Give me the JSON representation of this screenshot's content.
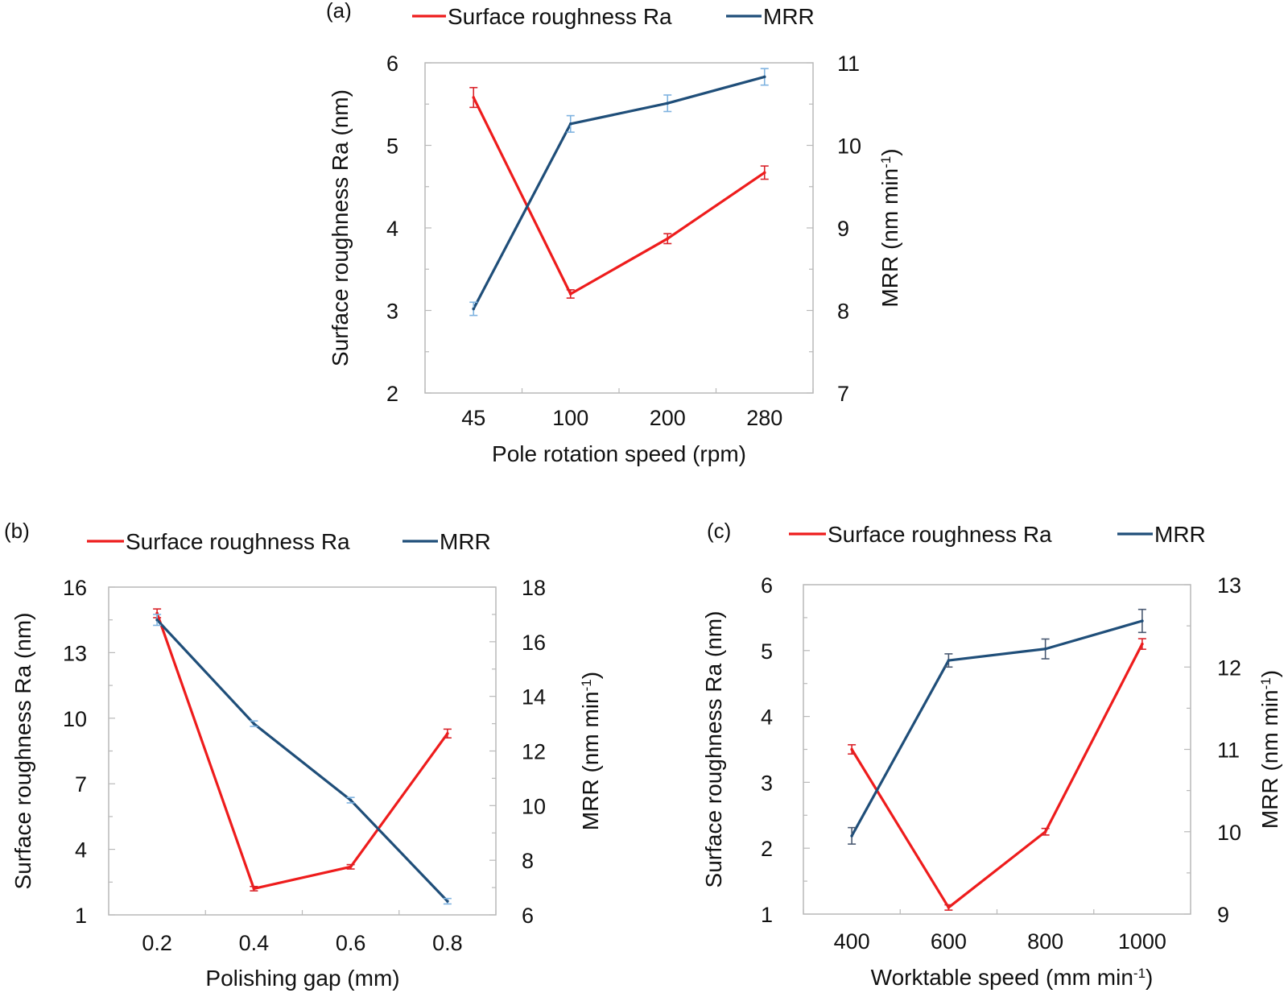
{
  "colors": {
    "roughness": "#ee1c1c",
    "mrr": "#1f4e79",
    "err_roughness": "#d9232a",
    "err_mrr_a": "#7fb3e0",
    "err_mrr": "#4a5a72"
  },
  "chart_data": [
    {
      "type": "line",
      "panel_label": "(a)",
      "xlabel": "Pole rotation speed  (rpm)",
      "ylabel_left": "Surface roughness Ra   (nm)",
      "ylabel_right_main": "MRR  (nm min",
      "ylabel_right_sup": "-1",
      "ylabel_right_close": ")",
      "categories": [
        "45",
        "100",
        "200",
        "280"
      ],
      "y_left": {
        "min": 2,
        "max": 6,
        "ticks": [
          "2",
          "3",
          "4",
          "5",
          "6"
        ]
      },
      "y_right": {
        "min": 7,
        "max": 11,
        "ticks": [
          "7",
          "8",
          "9",
          "10",
          "11"
        ]
      },
      "series": [
        {
          "name": "Surface roughness Ra",
          "axis": "left",
          "values": [
            5.58,
            3.2,
            3.87,
            4.67
          ],
          "errors": [
            0.12,
            0.05,
            0.06,
            0.08
          ]
        },
        {
          "name": "MRR",
          "axis": "right",
          "values": [
            8.02,
            10.26,
            10.51,
            10.83
          ],
          "errors": [
            0.08,
            0.1,
            0.1,
            0.1
          ]
        }
      ]
    },
    {
      "type": "line",
      "panel_label": "(b)",
      "xlabel": "Polishing gap (mm)",
      "ylabel_left": "Surface roughness Ra   (nm)",
      "ylabel_right_main": "MRR  (nm min",
      "ylabel_right_sup": "-1",
      "ylabel_right_close": ")",
      "categories": [
        "0.2",
        "0.4",
        "0.6",
        "0.8"
      ],
      "y_left": {
        "min": 1,
        "max": 16,
        "ticks": [
          "1",
          "4",
          "7",
          "10",
          "13",
          "16"
        ]
      },
      "y_right": {
        "min": 6,
        "max": 18,
        "ticks": [
          "6",
          "8",
          "10",
          "12",
          "14",
          "16",
          "18"
        ]
      },
      "series": [
        {
          "name": "Surface roughness Ra",
          "axis": "left",
          "values": [
            14.8,
            2.2,
            3.2,
            9.3
          ],
          "errors": [
            0.2,
            0.1,
            0.1,
            0.2
          ]
        },
        {
          "name": "MRR",
          "axis": "right",
          "values": [
            16.8,
            13.0,
            10.2,
            6.5
          ],
          "errors": [
            0.2,
            0.1,
            0.1,
            0.1
          ]
        }
      ]
    },
    {
      "type": "line",
      "panel_label": "(c)",
      "xlabel_main": "Worktable speed (mm min",
      "xlabel_sup": "-1",
      "xlabel_close": ")",
      "ylabel_left": "Surface roughness Ra   (nm)",
      "ylabel_right_main": "MRR  (nm min",
      "ylabel_right_sup": "-1",
      "ylabel_right_close": ")",
      "categories": [
        "400",
        "600",
        "800",
        "1000"
      ],
      "y_left": {
        "min": 1,
        "max": 6,
        "ticks": [
          "1",
          "2",
          "3",
          "4",
          "5",
          "6"
        ]
      },
      "y_right": {
        "min": 9,
        "max": 13,
        "ticks": [
          "9",
          "10",
          "11",
          "12",
          "13"
        ]
      },
      "series": [
        {
          "name": "Surface roughness Ra",
          "axis": "left",
          "values": [
            3.5,
            1.1,
            2.25,
            5.1
          ],
          "errors": [
            0.07,
            0.04,
            0.05,
            0.08
          ]
        },
        {
          "name": "MRR",
          "axis": "right",
          "values": [
            9.95,
            12.08,
            12.22,
            12.56
          ],
          "errors": [
            0.1,
            0.08,
            0.12,
            0.14
          ]
        }
      ]
    }
  ]
}
